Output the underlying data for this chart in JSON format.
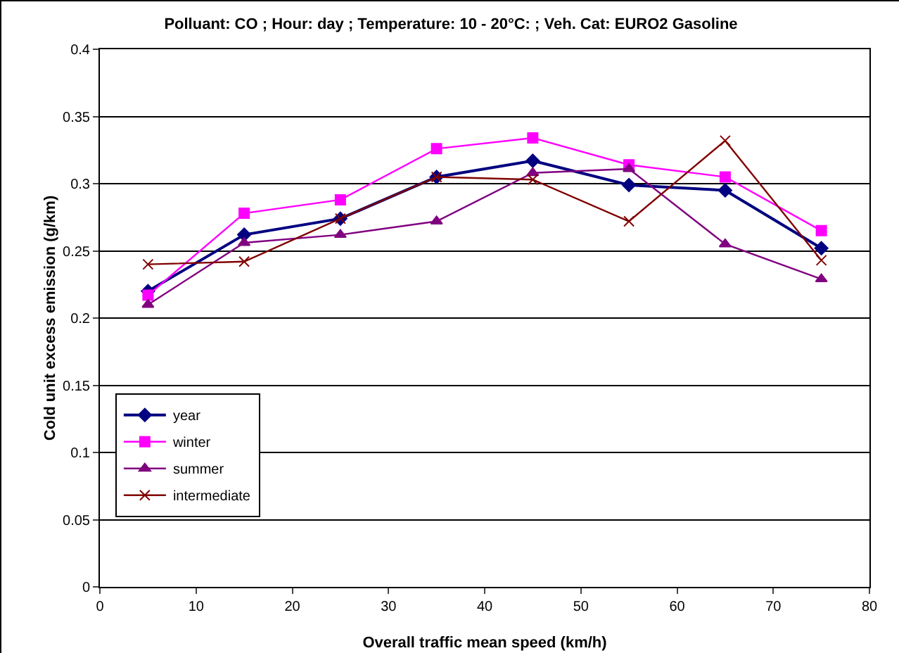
{
  "chart_data": {
    "type": "line",
    "title": "Polluant: CO ; Hour: day ; Temperature: 10 - 20°C: ; Veh. Cat: EURO2 Gasoline",
    "xlabel": "Overall traffic mean speed (km/h)",
    "ylabel": "Cold unit excess emission (g/km)",
    "x": [
      5,
      15,
      25,
      35,
      45,
      55,
      65,
      75
    ],
    "series": [
      {
        "name": "year",
        "color": "#000080",
        "marker": "diamond",
        "values": [
          0.22,
          0.262,
          0.274,
          0.305,
          0.317,
          0.299,
          0.295,
          0.252
        ]
      },
      {
        "name": "winter",
        "color": "#ff00ff",
        "marker": "square",
        "values": [
          0.217,
          0.278,
          0.288,
          0.326,
          0.334,
          0.314,
          0.305,
          0.265
        ]
      },
      {
        "name": "summer",
        "color": "#800080",
        "marker": "triangle",
        "values": [
          0.21,
          0.256,
          0.262,
          0.272,
          0.308,
          0.311,
          0.255,
          0.229
        ]
      },
      {
        "name": "intermediate",
        "color": "#800000",
        "marker": "cross",
        "values": [
          0.24,
          0.242,
          0.274,
          0.305,
          0.303,
          0.272,
          0.332,
          0.243
        ]
      }
    ],
    "xlim": [
      0,
      80
    ],
    "xticks": [
      0,
      10,
      20,
      30,
      40,
      50,
      60,
      70,
      80
    ],
    "ylim": [
      0,
      0.4
    ],
    "yticks": [
      0,
      0.05,
      0.1,
      0.15,
      0.2,
      0.25,
      0.3,
      0.35,
      0.4
    ],
    "grid": "y",
    "legend": "bottom left",
    "line_style": "solid"
  }
}
